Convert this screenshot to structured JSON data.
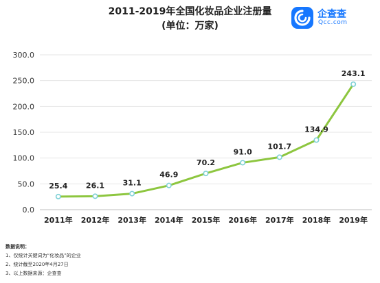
{
  "header": {
    "title": "2011-2019年全国化妆品企业注册量",
    "subtitle": "(单位：万家)"
  },
  "logo": {
    "brand": "企查查",
    "domain": "Qcc.com",
    "icon": "qcc-logo-icon",
    "color": "#1677ff"
  },
  "chart_data": {
    "type": "line",
    "title": "2011-2019年全国化妆品企业注册量",
    "subtitle": "(单位：万家)",
    "xlabel": "",
    "ylabel": "",
    "categories": [
      "2011年",
      "2012年",
      "2013年",
      "2014年",
      "2015年",
      "2016年",
      "2017年",
      "2018年",
      "2019年"
    ],
    "series": [
      {
        "values": [
          25.4,
          26.1,
          31.1,
          46.9,
          70.2,
          91.0,
          101.7,
          134.9,
          243.1
        ]
      }
    ],
    "data_labels": [
      "25.4",
      "26.1",
      "31.1",
      "46.9",
      "70.2",
      "91.0",
      "101.7",
      "134.9",
      "243.1"
    ],
    "ylim": [
      0,
      300
    ],
    "y_ticks": [
      "0.0",
      "50.0",
      "100.0",
      "150.0",
      "200.0",
      "250.0",
      "300.0"
    ],
    "grid": "horizontal",
    "legend": "none",
    "line_color": "#8dc63f",
    "marker_color": "#7fd1d6"
  },
  "notes": {
    "heading": "数据说明：",
    "items": [
      "1、仅统计关键词为“化妆品”的企业",
      "2、统计截至2020年4月27日",
      "3、以上数据来源：企查查"
    ]
  }
}
